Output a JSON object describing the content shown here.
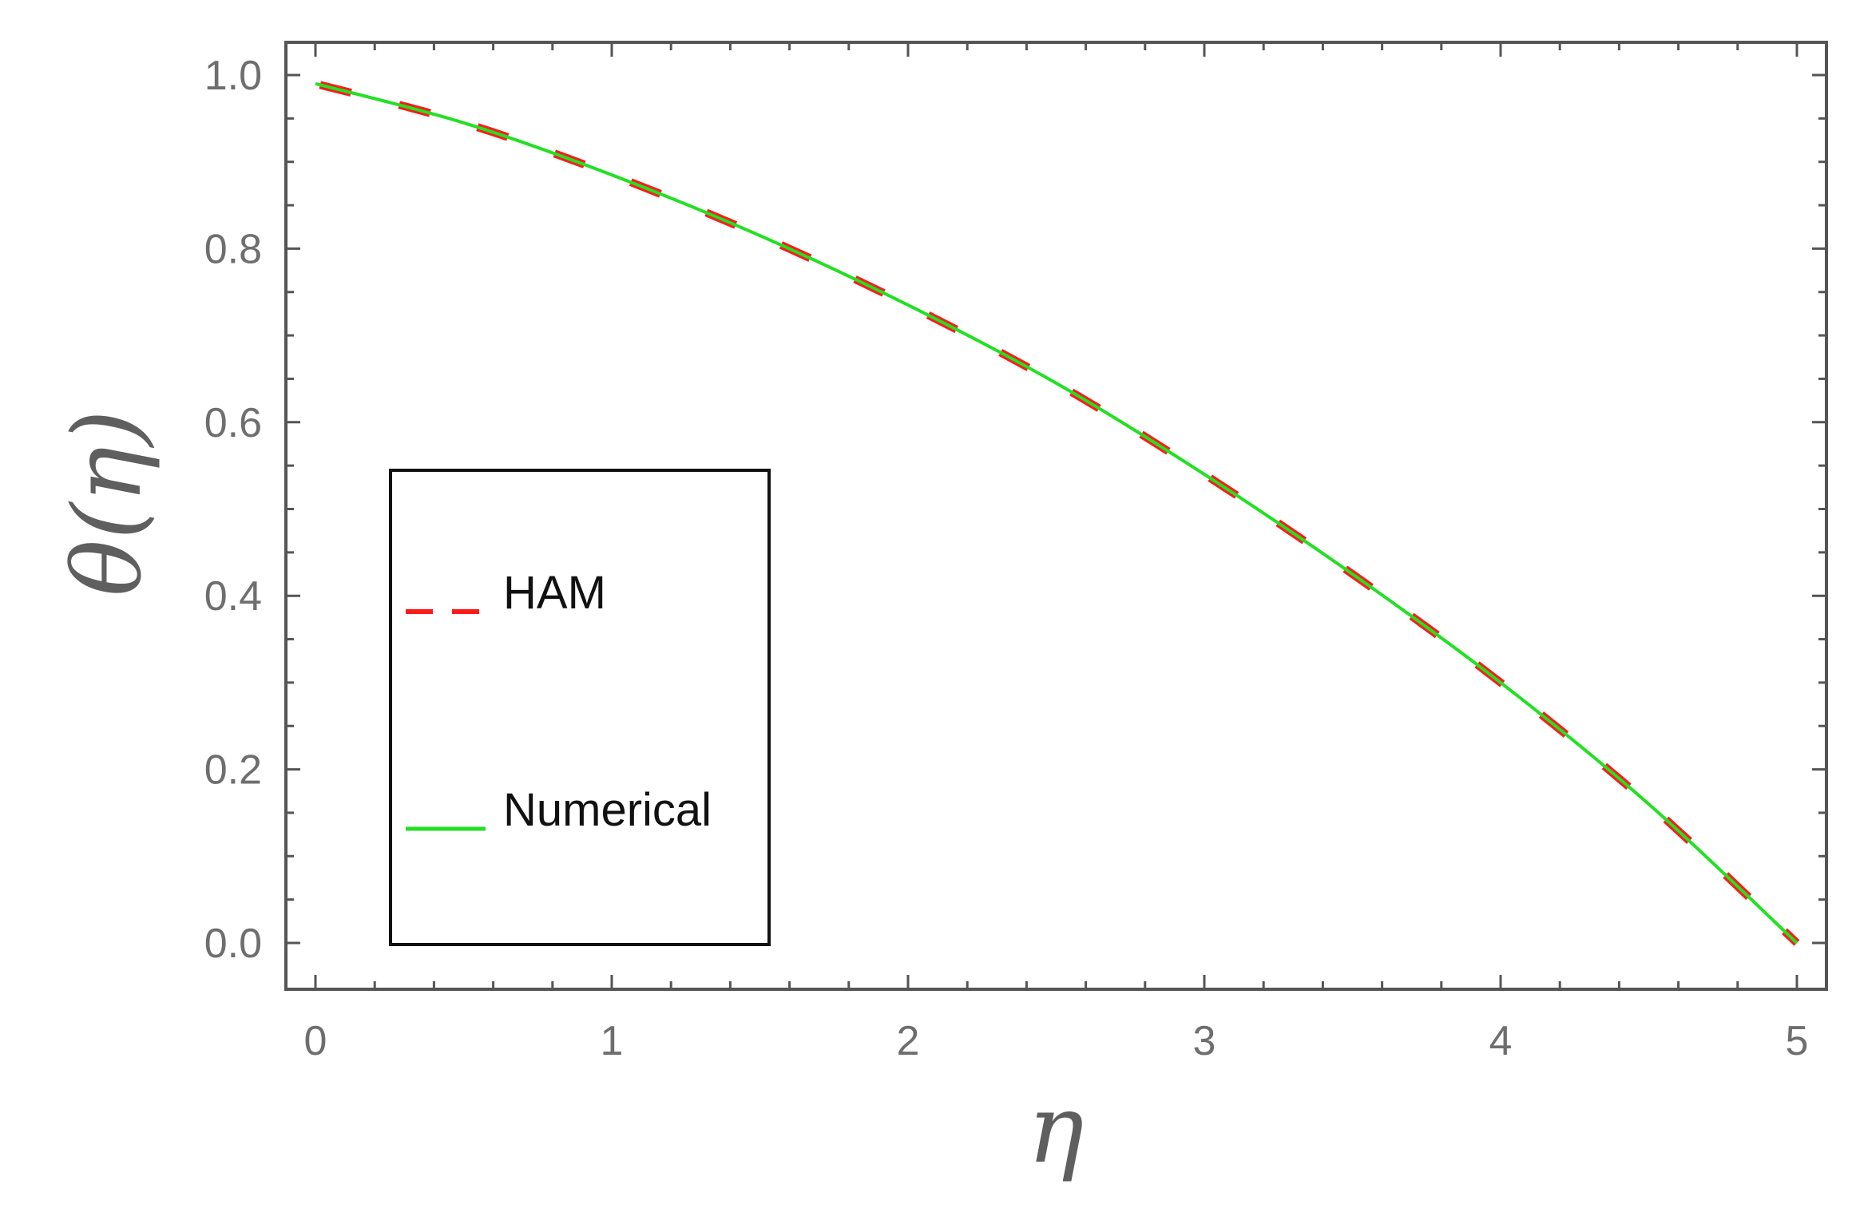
{
  "chart_data": {
    "type": "line",
    "title": "",
    "xlabel": "η",
    "ylabel": "θ(η)",
    "xlim": [
      0,
      5
    ],
    "ylim": [
      0,
      1.0
    ],
    "x_ticks": [
      "0",
      "1",
      "2",
      "3",
      "4",
      "5"
    ],
    "y_ticks": [
      "0.0",
      "0.2",
      "0.4",
      "0.6",
      "0.8",
      "1.0"
    ],
    "grid": false,
    "legend_position": "center-left",
    "x": [
      0,
      0.5,
      1.0,
      1.5,
      2.0,
      2.5,
      3.0,
      3.5,
      4.0,
      4.5,
      5.0
    ],
    "series": [
      {
        "name": "HAM",
        "color": "#ff1a1a",
        "style": "dashed",
        "values": [
          0.99,
          0.945,
          0.885,
          0.815,
          0.735,
          0.645,
          0.54,
          0.425,
          0.3,
          0.16,
          0.0
        ]
      },
      {
        "name": "Numerical",
        "color": "#22e022",
        "style": "solid",
        "values": [
          0.99,
          0.945,
          0.885,
          0.815,
          0.735,
          0.645,
          0.54,
          0.425,
          0.3,
          0.16,
          0.0
        ]
      }
    ]
  }
}
